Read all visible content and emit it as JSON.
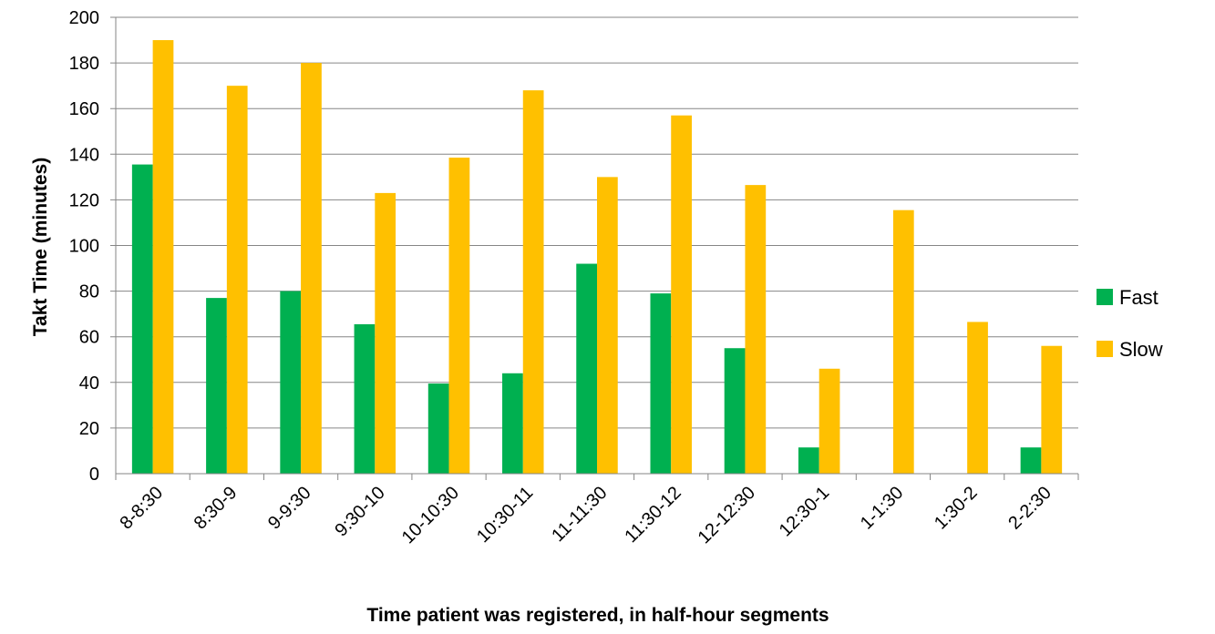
{
  "chart_data": {
    "type": "bar",
    "title": "",
    "xlabel": "Time patient was registered, in half-hour segments",
    "ylabel": "Takt Time (minutes)",
    "ylim": [
      0,
      200
    ],
    "yticks": [
      0,
      20,
      40,
      60,
      80,
      100,
      120,
      140,
      160,
      180,
      200
    ],
    "grid": true,
    "legend_position": "right",
    "categories": [
      "8-8:30",
      "8:30-9",
      "9-9:30",
      "9:30-10",
      "10-10:30",
      "10:30-11",
      "11-11:30",
      "11:30-12",
      "12-12:30",
      "12:30-1",
      "1-1:30",
      "1:30-2",
      "2-2:30"
    ],
    "series": [
      {
        "name": "Fast",
        "color": "#00B050",
        "values": [
          135.5,
          77,
          80,
          65.5,
          39.5,
          44,
          92,
          79,
          55,
          11.5,
          null,
          null,
          11.5
        ]
      },
      {
        "name": "Slow",
        "color": "#FFC000",
        "values": [
          190,
          170,
          180,
          123,
          138.5,
          168,
          130,
          157,
          126.5,
          46,
          115.5,
          66.5,
          56
        ]
      }
    ]
  }
}
